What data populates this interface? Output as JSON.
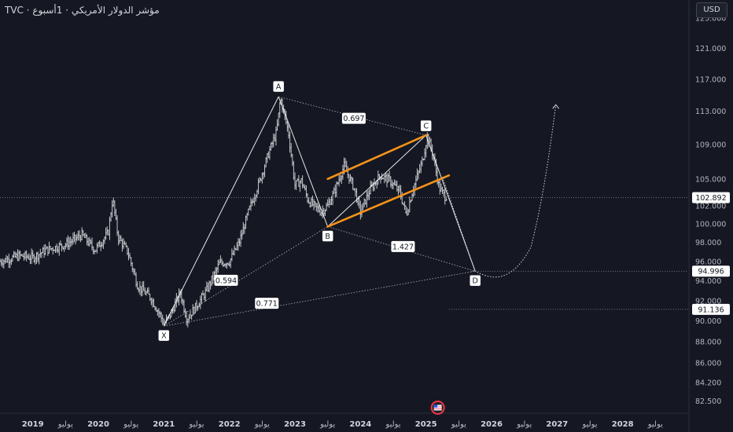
{
  "header": {
    "symbol_title": "TVC · مؤشر الدولار الأمريكي · 1أسبوع",
    "currency": "USD"
  },
  "colors": {
    "background": "#151822",
    "bars": "#c5c7cc",
    "channel": "#f7931a",
    "pattern_lines": "#ffffff",
    "axis_text": "#b2b5be"
  },
  "chart_data": {
    "type": "ohlc",
    "title": "",
    "y_axis": {
      "range": [
        81.5,
        127.5
      ],
      "ticks": [
        "82.500",
        "84.200",
        "86.000",
        "88.000",
        "90.000",
        "92.000",
        "94.000",
        "96.000",
        "98.000",
        "100.000",
        "102.000",
        "105.000",
        "109.000",
        "113.000",
        "117.000",
        "121.000",
        "125.000"
      ],
      "scale": "log"
    },
    "x_axis": {
      "labels": [
        "2019",
        "يوليو",
        "2020",
        "يوليو",
        "2021",
        "يوليو",
        "2022",
        "يوليو",
        "2023",
        "يوليو",
        "2024",
        "يوليو",
        "2025",
        "يوليو",
        "2026",
        "يوليو",
        "2027",
        "يوليو",
        "2028",
        "يوليو"
      ],
      "start": 2018.5,
      "end": 2029.0
    },
    "price_path": [
      [
        2018.5,
        96.0
      ],
      [
        2018.8,
        96.6
      ],
      [
        2019.0,
        96.4
      ],
      [
        2019.2,
        97.2
      ],
      [
        2019.5,
        97.8
      ],
      [
        2019.75,
        98.8
      ],
      [
        2019.95,
        97.2
      ],
      [
        2020.15,
        99.0
      ],
      [
        2020.22,
        102.8
      ],
      [
        2020.3,
        98.6
      ],
      [
        2020.45,
        97.0
      ],
      [
        2020.6,
        93.5
      ],
      [
        2020.8,
        92.3
      ],
      [
        2020.95,
        90.5
      ],
      [
        2021.0,
        89.7
      ],
      [
        2021.1,
        90.6
      ],
      [
        2021.25,
        92.8
      ],
      [
        2021.35,
        90.2
      ],
      [
        2021.5,
        91.5
      ],
      [
        2021.65,
        93.0
      ],
      [
        2021.85,
        95.8
      ],
      [
        2022.0,
        96.0
      ],
      [
        2022.15,
        98.0
      ],
      [
        2022.3,
        101.5
      ],
      [
        2022.45,
        104.5
      ],
      [
        2022.6,
        108.0
      ],
      [
        2022.72,
        110.5
      ],
      [
        2022.78,
        114.6
      ],
      [
        2022.9,
        110.5
      ],
      [
        2023.0,
        104.3
      ],
      [
        2023.1,
        104.8
      ],
      [
        2023.2,
        102.6
      ],
      [
        2023.3,
        101.9
      ],
      [
        2023.4,
        101.3
      ],
      [
        2023.5,
        102.0
      ],
      [
        2023.6,
        103.5
      ],
      [
        2023.75,
        106.5
      ],
      [
        2023.9,
        104.0
      ],
      [
        2024.0,
        101.3
      ],
      [
        2024.15,
        103.8
      ],
      [
        2024.3,
        105.4
      ],
      [
        2024.45,
        104.8
      ],
      [
        2024.6,
        103.5
      ],
      [
        2024.7,
        101.0
      ],
      [
        2024.8,
        103.8
      ],
      [
        2024.95,
        107.2
      ],
      [
        2025.02,
        110.0
      ],
      [
        2025.1,
        108.0
      ],
      [
        2025.2,
        104.0
      ],
      [
        2025.26,
        103.3
      ],
      [
        2025.3,
        102.9
      ],
      [
        2025.32,
        103.4
      ]
    ],
    "last_price": "102.892",
    "price_labels": [
      {
        "value": 102.892,
        "text": "102.892"
      },
      {
        "value": 94.996,
        "text": "94.996"
      },
      {
        "value": 91.136,
        "text": "91.136"
      }
    ],
    "pattern_points": [
      {
        "label": "X",
        "x": 2021.0,
        "y": 89.5
      },
      {
        "label": "A",
        "x": 2022.75,
        "y": 114.8
      },
      {
        "label": "B",
        "x": 2023.5,
        "y": 99.7
      },
      {
        "label": "C",
        "x": 2025.0,
        "y": 110.1
      },
      {
        "label": "D",
        "x": 2025.75,
        "y": 95.0
      }
    ],
    "ratios": [
      {
        "text": "0.697"
      },
      {
        "text": "1.427"
      },
      {
        "text": "0.594"
      },
      {
        "text": "0.771"
      }
    ],
    "channel": {
      "upper": [
        [
          2023.5,
          105.0
        ],
        [
          2025.0,
          110.1
        ]
      ],
      "lower": [
        [
          2023.5,
          99.7
        ],
        [
          2025.35,
          105.4
        ]
      ]
    },
    "projection": [
      [
        2025.25,
        105.2
      ],
      [
        2025.75,
        95.0
      ],
      [
        2026.0,
        94.1
      ],
      [
        2026.3,
        93.7
      ],
      [
        2026.6,
        97.5
      ],
      [
        2026.8,
        103.0
      ],
      [
        2026.92,
        110.0
      ],
      [
        2026.98,
        113.8
      ]
    ]
  }
}
